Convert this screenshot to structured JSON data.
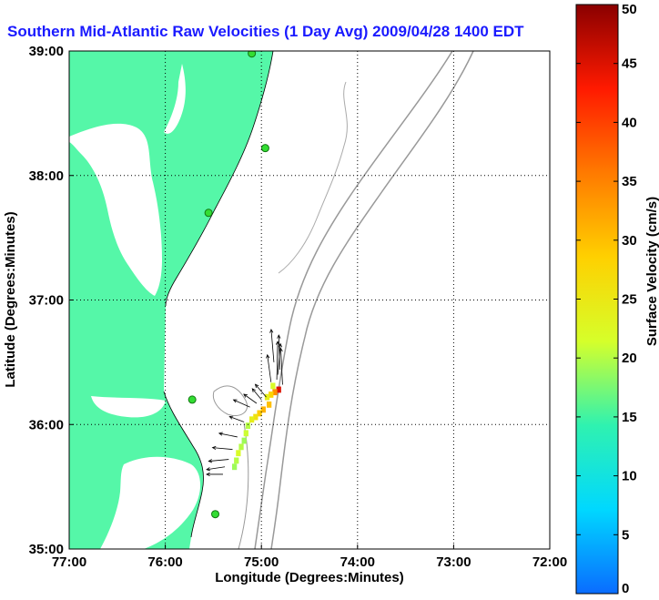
{
  "chart_data": {
    "type": "map",
    "title": "Southern Mid-Atlantic Raw Velocities (1 Day Avg) 2009/04/28 1400 EDT",
    "xlabel": "Longitude (Degrees:Minutes)",
    "ylabel": "Latitude (Degrees:Minutes)",
    "x_ticks": [
      "77:00",
      "76:00",
      "75:00",
      "74:00",
      "73:00",
      "72:00"
    ],
    "y_ticks": [
      "39:00",
      "38:00",
      "37:00",
      "36:00",
      "35:00"
    ],
    "x_values": [
      -77,
      -76,
      -75,
      -74,
      -73,
      -72
    ],
    "y_values": [
      39,
      38,
      37,
      36,
      35
    ],
    "xlim": [
      -77,
      -72
    ],
    "ylim": [
      35,
      39
    ],
    "grid": "dotted",
    "land_color": "#55f7a8",
    "bathymetry_color": "#999999",
    "colorbar": {
      "label": "Surface Velocity (cm/s)",
      "ticks": [
        "0",
        "5",
        "10",
        "15",
        "20",
        "25",
        "30",
        "35",
        "40",
        "45",
        "50"
      ],
      "values": [
        0,
        5,
        10,
        15,
        20,
        25,
        30,
        35,
        40,
        45,
        50
      ],
      "range": [
        0,
        50
      ],
      "colormap": [
        "#0a6cff",
        "#00d8ff",
        "#2ff2b0",
        "#d6ff2a",
        "#ffd000",
        "#ff7a00",
        "#ff1a00",
        "#8a0000"
      ]
    },
    "stations": [
      {
        "lon": -75.1,
        "lat": 38.98
      },
      {
        "lon": -74.96,
        "lat": 38.22
      },
      {
        "lon": -75.55,
        "lat": 37.7
      },
      {
        "lon": -75.72,
        "lat": 36.2
      },
      {
        "lon": -75.48,
        "lat": 35.28
      }
    ],
    "velocity_cells": [
      {
        "lon": -74.82,
        "lat": 36.28,
        "v": 45
      },
      {
        "lon": -74.86,
        "lat": 36.26,
        "v": 34
      },
      {
        "lon": -74.9,
        "lat": 36.24,
        "v": 28
      },
      {
        "lon": -74.94,
        "lat": 36.22,
        "v": 24
      },
      {
        "lon": -74.88,
        "lat": 36.31,
        "v": 22
      },
      {
        "lon": -74.92,
        "lat": 36.16,
        "v": 30
      },
      {
        "lon": -74.98,
        "lat": 36.12,
        "v": 31
      },
      {
        "lon": -75.02,
        "lat": 36.09,
        "v": 29
      },
      {
        "lon": -75.06,
        "lat": 36.06,
        "v": 26
      },
      {
        "lon": -75.1,
        "lat": 36.04,
        "v": 24
      },
      {
        "lon": -75.14,
        "lat": 35.99,
        "v": 20
      },
      {
        "lon": -75.16,
        "lat": 35.93,
        "v": 21
      },
      {
        "lon": -75.18,
        "lat": 35.87,
        "v": 19
      },
      {
        "lon": -75.21,
        "lat": 35.82,
        "v": 20
      },
      {
        "lon": -75.24,
        "lat": 35.77,
        "v": 22
      },
      {
        "lon": -75.26,
        "lat": 35.71,
        "v": 20
      },
      {
        "lon": -75.28,
        "lat": 35.66,
        "v": 19
      }
    ],
    "vectors": [
      {
        "lon": -74.78,
        "lat": 36.32,
        "u": 2,
        "w": 40
      },
      {
        "lon": -74.84,
        "lat": 36.36,
        "u": -1,
        "w": 42
      },
      {
        "lon": -74.81,
        "lat": 36.44,
        "u": 1,
        "w": 38
      },
      {
        "lon": -74.87,
        "lat": 36.5,
        "u": 3,
        "w": 36
      },
      {
        "lon": -74.83,
        "lat": 36.4,
        "u": -3,
        "w": 34
      },
      {
        "lon": -74.9,
        "lat": 36.34,
        "u": 4,
        "w": 30
      },
      {
        "lon": -74.95,
        "lat": 36.22,
        "u": 12,
        "w": 14
      },
      {
        "lon": -75.0,
        "lat": 36.2,
        "u": 10,
        "w": 12
      },
      {
        "lon": -75.05,
        "lat": 36.17,
        "u": 14,
        "w": 10
      },
      {
        "lon": -75.12,
        "lat": 36.14,
        "u": 18,
        "w": 8
      },
      {
        "lon": -75.18,
        "lat": 36.02,
        "u": 16,
        "w": 6
      },
      {
        "lon": -75.25,
        "lat": 35.9,
        "u": 20,
        "w": 4
      },
      {
        "lon": -75.3,
        "lat": 35.8,
        "u": 22,
        "w": 2
      },
      {
        "lon": -75.34,
        "lat": 35.72,
        "u": 22,
        "w": -2
      },
      {
        "lon": -75.38,
        "lat": 35.66,
        "u": 20,
        "w": -3
      },
      {
        "lon": -75.4,
        "lat": 35.6,
        "u": 18,
        "w": 0
      }
    ]
  }
}
